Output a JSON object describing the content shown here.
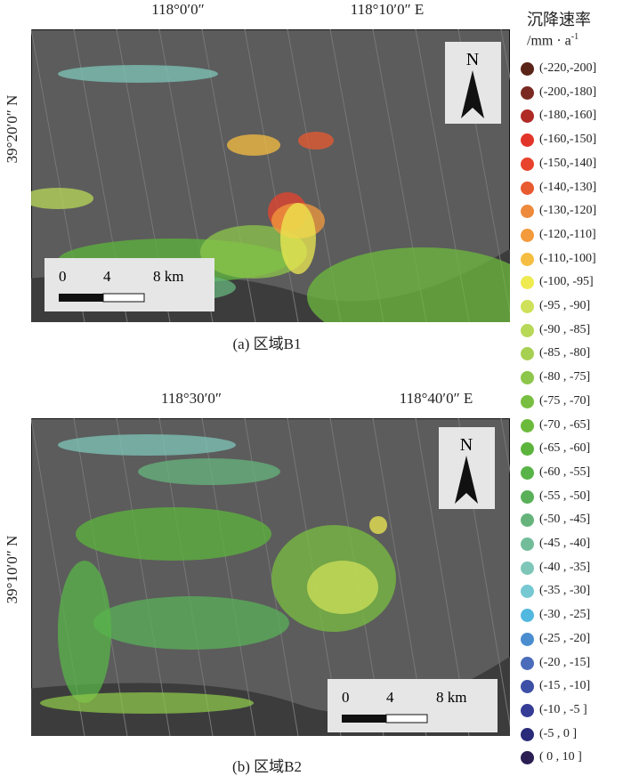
{
  "panels": [
    {
      "lon_labels": [
        "118°0′0″",
        "118°10′0″ E"
      ],
      "lat_label": "39°20′0″ N",
      "north": "N",
      "scale_labels": [
        "0",
        "4",
        "8 km"
      ],
      "caption": "(a) 区域B1"
    },
    {
      "lon_labels": [
        "118°30′0″",
        "118°40′0″ E"
      ],
      "lat_label": "39°10′0″ N",
      "north": "N",
      "scale_labels": [
        "0",
        "4",
        "8 km"
      ],
      "caption": "(b) 区域B2"
    }
  ],
  "legend": {
    "title": "沉降速率",
    "unit": "/mm · a",
    "unit_exponent": "-1",
    "items": [
      {
        "label": "(-220,-200]",
        "color": "#5a2418"
      },
      {
        "label": "(-200,-180]",
        "color": "#7a2a22"
      },
      {
        "label": "(-180,-160]",
        "color": "#b02a26"
      },
      {
        "label": "(-160,-150]",
        "color": "#e2352a"
      },
      {
        "label": "(-150,-140]",
        "color": "#e8432c"
      },
      {
        "label": "(-140,-130]",
        "color": "#e85a30"
      },
      {
        "label": "(-130,-120]",
        "color": "#ee8a3c"
      },
      {
        "label": "(-120,-110]",
        "color": "#f39a3c"
      },
      {
        "label": "(-110,-100]",
        "color": "#f5be42"
      },
      {
        "label": "(-100, -95]",
        "color": "#eeea50"
      },
      {
        "label": "(-95 , -90]",
        "color": "#cfe05a"
      },
      {
        "label": "(-90 , -85]",
        "color": "#b8d858"
      },
      {
        "label": "(-85 , -80]",
        "color": "#a6d052"
      },
      {
        "label": "(-80 , -75]",
        "color": "#8cc64a"
      },
      {
        "label": "(-75 , -70]",
        "color": "#78be40"
      },
      {
        "label": "(-70 , -65]",
        "color": "#6cba3c"
      },
      {
        "label": "(-65 , -60]",
        "color": "#5cb43c"
      },
      {
        "label": "(-60 , -55]",
        "color": "#58b448"
      },
      {
        "label": "(-55 , -50]",
        "color": "#5ab058"
      },
      {
        "label": "(-50 , -45]",
        "color": "#66b47c"
      },
      {
        "label": "(-45 , -40]",
        "color": "#72bc9a"
      },
      {
        "label": "(-40 , -35]",
        "color": "#7ec6b8"
      },
      {
        "label": "(-35 , -30]",
        "color": "#76c8d2"
      },
      {
        "label": "(-30 , -25]",
        "color": "#52b8e0"
      },
      {
        "label": "(-25 , -20]",
        "color": "#4a8ed0"
      },
      {
        "label": "(-20 , -15]",
        "color": "#4a6cba"
      },
      {
        "label": "(-15 , -10]",
        "color": "#3c50a6"
      },
      {
        "label": "(-10 , -5 ]",
        "color": "#343c96"
      },
      {
        "label": "(-5 ,  0 ]",
        "color": "#2a2a7a"
      },
      {
        "label": "( 0 , 10 ]",
        "color": "#2a1e52"
      }
    ]
  }
}
